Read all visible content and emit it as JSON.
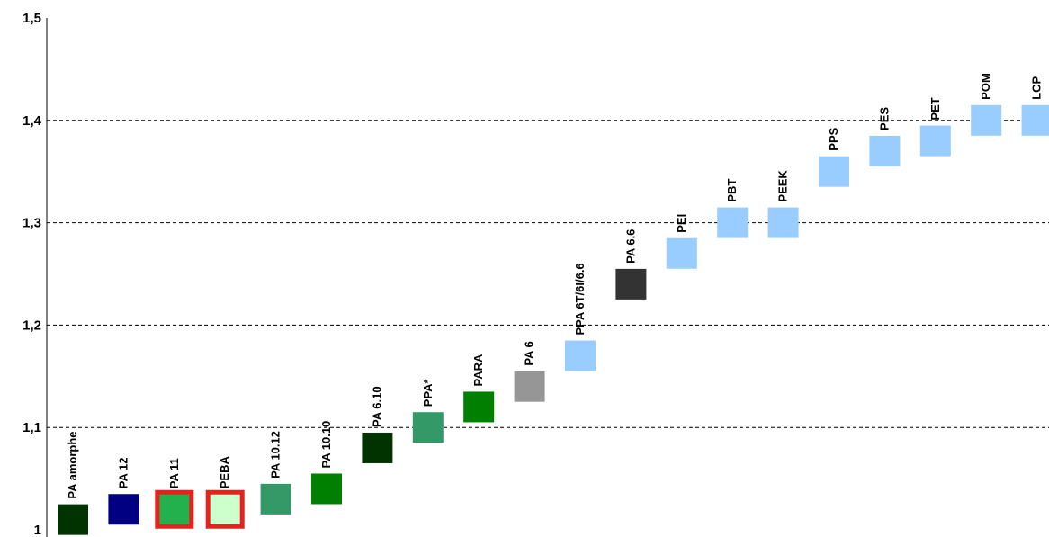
{
  "chart_data": {
    "type": "scatter",
    "title": "",
    "xlabel": "",
    "ylabel": "",
    "ylim": [
      1.0,
      1.5
    ],
    "y_ticks": [
      "1",
      "1,1",
      "1,2",
      "1,3",
      "1,4",
      "1,5"
    ],
    "grid": "horizontal dashed at 1,1 / 1,2 / 1,3 / 1,4",
    "legend": "none",
    "points": [
      {
        "label": "PA amorphe",
        "y": 1.01,
        "color": "#003300",
        "highlight": false
      },
      {
        "label": "PA 12",
        "y": 1.02,
        "color": "#000080",
        "highlight": false
      },
      {
        "label": "PA 11",
        "y": 1.02,
        "color": "#22b14c",
        "highlight": true,
        "highlight_color": "#e8201f"
      },
      {
        "label": "PEBA",
        "y": 1.02,
        "color": "#ccffcc",
        "highlight": true,
        "highlight_color": "#e8201f"
      },
      {
        "label": "PA 10.12",
        "y": 1.03,
        "color": "#339966",
        "highlight": false
      },
      {
        "label": "PA 10.10",
        "y": 1.04,
        "color": "#008000",
        "highlight": false
      },
      {
        "label": "PA 6.10",
        "y": 1.08,
        "color": "#003300",
        "highlight": false
      },
      {
        "label": "PPA*",
        "y": 1.1,
        "color": "#339966",
        "highlight": false
      },
      {
        "label": "PARA",
        "y": 1.12,
        "color": "#008000",
        "highlight": false
      },
      {
        "label": "PA 6",
        "y": 1.14,
        "color": "#969696",
        "highlight": false
      },
      {
        "label": "PPA 6T/6I/6.6",
        "y": 1.17,
        "color": "#99ccff",
        "highlight": false
      },
      {
        "label": "PA 6.6",
        "y": 1.24,
        "color": "#333333",
        "highlight": false
      },
      {
        "label": "PEI",
        "y": 1.27,
        "color": "#99ccff",
        "highlight": false
      },
      {
        "label": "PBT",
        "y": 1.3,
        "color": "#99ccff",
        "highlight": false
      },
      {
        "label": "PEEK",
        "y": 1.3,
        "color": "#99ccff",
        "highlight": false
      },
      {
        "label": "PPS",
        "y": 1.35,
        "color": "#99ccff",
        "highlight": false
      },
      {
        "label": "PES",
        "y": 1.37,
        "color": "#99ccff",
        "highlight": false
      },
      {
        "label": "PET",
        "y": 1.38,
        "color": "#99ccff",
        "highlight": false
      },
      {
        "label": "POM",
        "y": 1.4,
        "color": "#99ccff",
        "highlight": false
      },
      {
        "label": "LCP",
        "y": 1.4,
        "color": "#99ccff",
        "highlight": false
      }
    ]
  }
}
